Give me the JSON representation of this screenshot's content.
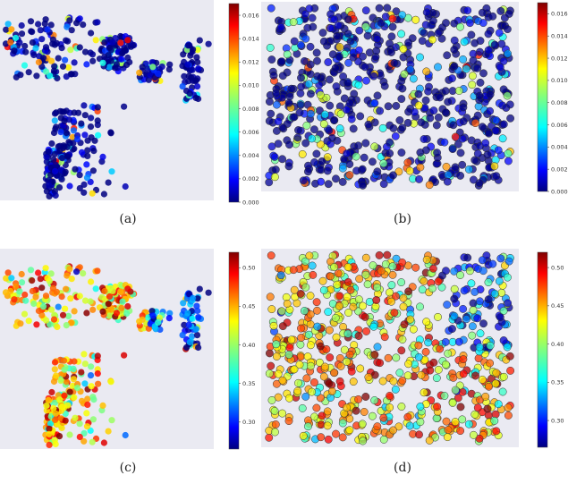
{
  "colors": {
    "axes_background": "#eaeaf2",
    "colormap": [
      "#00007f",
      "#0000ff",
      "#007fff",
      "#00ffff",
      "#7fff7f",
      "#ffff00",
      "#ff7f00",
      "#ff0000",
      "#7f0000"
    ]
  },
  "chart_data": [
    {
      "panel": "a",
      "caption": "(a)",
      "type": "scatter",
      "layout_kind": "clusters",
      "marker_edge": false,
      "point_count": 520,
      "color_mean": 0.001,
      "colorbar": {
        "range": [
          0.0,
          0.017
        ],
        "ticks": [
          "0.000",
          "0.002",
          "0.004",
          "0.006",
          "0.008",
          "0.010",
          "0.012",
          "0.014",
          "0.016"
        ]
      }
    },
    {
      "panel": "b",
      "caption": "(b)",
      "type": "scatter",
      "layout_kind": "uniform",
      "marker_edge": true,
      "point_count": 720,
      "color_mean": 0.001,
      "colorbar": {
        "range": [
          0.0,
          0.017
        ],
        "ticks": [
          "0.000",
          "0.002",
          "0.004",
          "0.006",
          "0.008",
          "0.010",
          "0.012",
          "0.014",
          "0.016"
        ]
      }
    },
    {
      "panel": "c",
      "caption": "(c)",
      "type": "scatter",
      "layout_kind": "clusters",
      "marker_edge": false,
      "point_count": 520,
      "color_mean": 0.44,
      "colorbar": {
        "range": [
          0.265,
          0.52
        ],
        "ticks": [
          "0.30",
          "0.35",
          "0.40",
          "0.45",
          "0.50"
        ]
      }
    },
    {
      "panel": "d",
      "caption": "(d)",
      "type": "scatter",
      "layout_kind": "uniform",
      "marker_edge": true,
      "point_count": 720,
      "color_mean": 0.44,
      "colorbar": {
        "range": [
          0.265,
          0.52
        ],
        "ticks": [
          "0.30",
          "0.35",
          "0.40",
          "0.45",
          "0.50"
        ]
      }
    }
  ]
}
